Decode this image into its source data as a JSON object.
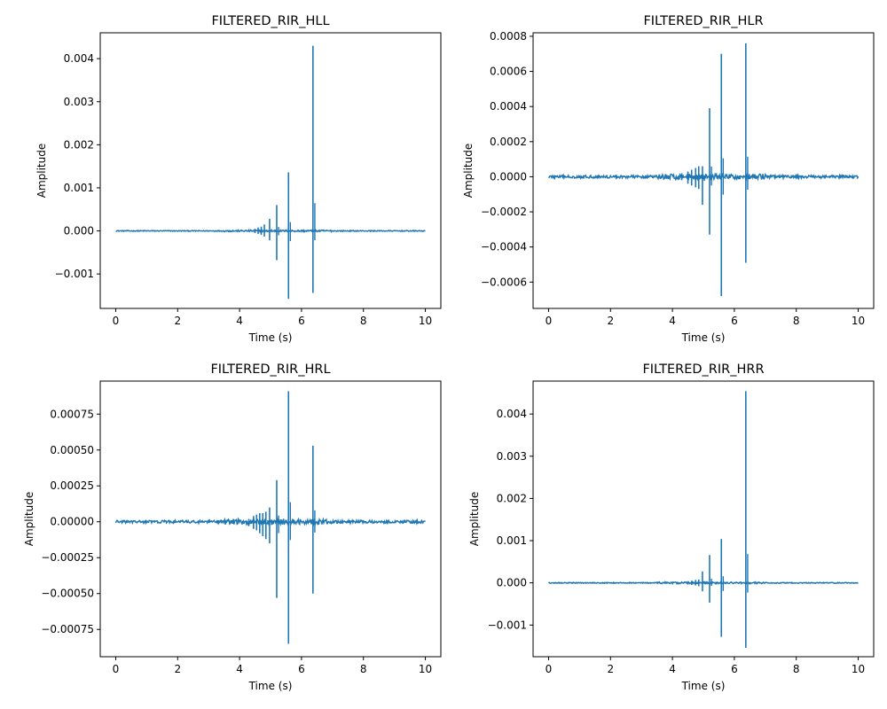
{
  "colors": {
    "series": "#1f77b4",
    "background": "#ffffff",
    "axes": "#000000"
  },
  "chart_data": [
    {
      "type": "line",
      "title": "FILTERED_RIR_HLL",
      "xlabel": "Time (s)",
      "ylabel": "Amplitude",
      "xlim": [
        -0.5,
        10.5
      ],
      "ylim": [
        -0.0018,
        0.0046
      ],
      "xticks": [
        0,
        2,
        4,
        6,
        8,
        10
      ],
      "xtick_labels": [
        "0",
        "2",
        "4",
        "6",
        "8",
        "10"
      ],
      "yticks": [
        -0.001,
        0.0,
        0.001,
        0.002,
        0.003,
        0.004
      ],
      "ytick_labels": [
        "−0.001",
        "0.000",
        "0.001",
        "0.002",
        "0.003",
        "0.004"
      ],
      "grid": false,
      "noise_floor": 1e-05,
      "impulses": [
        {
          "t": 4.5,
          "pos": 5e-05,
          "neg": -5e-05
        },
        {
          "t": 4.6,
          "pos": 8e-05,
          "neg": -7e-05
        },
        {
          "t": 4.7,
          "pos": 0.0001,
          "neg": -9e-05
        },
        {
          "t": 4.8,
          "pos": 0.00015,
          "neg": -0.00013
        },
        {
          "t": 4.97,
          "pos": 0.00028,
          "neg": -0.00022
        },
        {
          "t": 5.2,
          "pos": 0.0006,
          "neg": -0.00068
        },
        {
          "t": 5.58,
          "pos": 0.00136,
          "neg": -0.00158
        },
        {
          "t": 6.37,
          "pos": 0.0043,
          "neg": -0.00144
        }
      ]
    },
    {
      "type": "line",
      "title": "FILTERED_RIR_HLR",
      "xlabel": "Time (s)",
      "ylabel": "Amplitude",
      "xlim": [
        -0.5,
        10.5
      ],
      "ylim": [
        -0.00075,
        0.00082
      ],
      "xticks": [
        0,
        2,
        4,
        6,
        8,
        10
      ],
      "xtick_labels": [
        "0",
        "2",
        "4",
        "6",
        "8",
        "10"
      ],
      "yticks": [
        -0.0006,
        -0.0004,
        -0.0002,
        0.0,
        0.0002,
        0.0004,
        0.0006,
        0.0008
      ],
      "ytick_labels": [
        "−0.0006",
        "−0.0004",
        "−0.0002",
        "0.0000",
        "0.0002",
        "0.0004",
        "0.0006",
        "0.0008"
      ],
      "grid": false,
      "noise_floor": 8e-06,
      "impulses": [
        {
          "t": 4.3,
          "pos": 2e-05,
          "neg": -2e-05
        },
        {
          "t": 4.5,
          "pos": 3e-05,
          "neg": -4e-05
        },
        {
          "t": 4.62,
          "pos": 4e-05,
          "neg": -5e-05
        },
        {
          "t": 4.75,
          "pos": 5e-05,
          "neg": -6e-05
        },
        {
          "t": 4.85,
          "pos": 6e-05,
          "neg": -7e-05
        },
        {
          "t": 4.97,
          "pos": 6e-05,
          "neg": -0.00016
        },
        {
          "t": 5.2,
          "pos": 0.00039,
          "neg": -0.00033
        },
        {
          "t": 5.58,
          "pos": 0.0007,
          "neg": -0.00068
        },
        {
          "t": 6.37,
          "pos": 0.00076,
          "neg": -0.00049
        }
      ]
    },
    {
      "type": "line",
      "title": "FILTERED_RIR_HRL",
      "xlabel": "Time (s)",
      "ylabel": "Amplitude",
      "xlim": [
        -0.5,
        10.5
      ],
      "ylim": [
        -0.00094,
        0.00098
      ],
      "xticks": [
        0,
        2,
        4,
        6,
        8,
        10
      ],
      "xtick_labels": [
        "0",
        "2",
        "4",
        "6",
        "8",
        "10"
      ],
      "yticks": [
        -0.00075,
        -0.0005,
        -0.00025,
        0.0,
        0.00025,
        0.0005,
        0.00075
      ],
      "ytick_labels": [
        "−0.00075",
        "−0.00050",
        "−0.00025",
        "0.00000",
        "0.00025",
        "0.00050",
        "0.00075"
      ],
      "grid": false,
      "noise_floor": 1e-05,
      "impulses": [
        {
          "t": 4.3,
          "pos": 2e-05,
          "neg": -3e-05
        },
        {
          "t": 4.45,
          "pos": 4e-05,
          "neg": -5e-05
        },
        {
          "t": 4.55,
          "pos": 5e-05,
          "neg": -6e-05
        },
        {
          "t": 4.65,
          "pos": 6e-05,
          "neg": -8e-05
        },
        {
          "t": 4.75,
          "pos": 6e-05,
          "neg": -0.0001
        },
        {
          "t": 4.85,
          "pos": 7e-05,
          "neg": -0.00012
        },
        {
          "t": 4.97,
          "pos": 0.0001,
          "neg": -0.00015
        },
        {
          "t": 5.2,
          "pos": 0.00029,
          "neg": -0.00053
        },
        {
          "t": 5.58,
          "pos": 0.00091,
          "neg": -0.00085
        },
        {
          "t": 6.37,
          "pos": 0.00053,
          "neg": -0.0005
        }
      ]
    },
    {
      "type": "line",
      "title": "FILTERED_RIR_HRR",
      "xlabel": "Time (s)",
      "ylabel": "Amplitude",
      "xlim": [
        -0.5,
        10.5
      ],
      "ylim": [
        -0.00175,
        0.00478
      ],
      "xticks": [
        0,
        2,
        4,
        6,
        8,
        10
      ],
      "xtick_labels": [
        "0",
        "2",
        "4",
        "6",
        "8",
        "10"
      ],
      "yticks": [
        -0.001,
        0.0,
        0.001,
        0.002,
        0.003,
        0.004
      ],
      "ytick_labels": [
        "−0.001",
        "0.000",
        "0.001",
        "0.002",
        "0.003",
        "0.004"
      ],
      "grid": false,
      "noise_floor": 1e-05,
      "impulses": [
        {
          "t": 4.5,
          "pos": 4e-05,
          "neg": -4e-05
        },
        {
          "t": 4.62,
          "pos": 5e-05,
          "neg": -5e-05
        },
        {
          "t": 4.75,
          "pos": 7e-05,
          "neg": -6e-05
        },
        {
          "t": 4.85,
          "pos": 8e-05,
          "neg": -8e-05
        },
        {
          "t": 4.97,
          "pos": 0.00027,
          "neg": -0.0002
        },
        {
          "t": 5.2,
          "pos": 0.00066,
          "neg": -0.00047
        },
        {
          "t": 5.58,
          "pos": 0.00104,
          "neg": -0.00128
        },
        {
          "t": 6.37,
          "pos": 0.00454,
          "neg": -0.00154
        }
      ]
    }
  ]
}
